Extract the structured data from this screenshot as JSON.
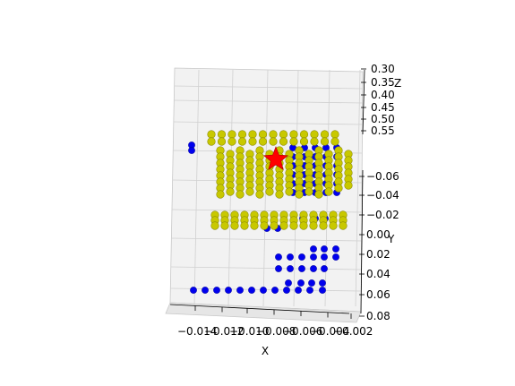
{
  "chart_data": {
    "type": "scatter",
    "title": "",
    "xlabel": "X",
    "ylabel": "Y",
    "zlabel": "Z",
    "x_ticks": [
      "−0.014",
      "−0.012",
      "−0.010",
      "−0.008",
      "−0.006",
      "−0.004",
      "−0.002"
    ],
    "y_ticks": [
      "−0.06",
      "−0.04",
      "−0.02",
      "0.00",
      "0.02",
      "0.04",
      "0.06",
      "0.08"
    ],
    "z_ticks": [
      "0.30",
      "0.35",
      "0.40",
      "0.45",
      "0.50",
      "0.55"
    ],
    "xlim": [
      -0.0145,
      -0.0015
    ],
    "ylim": [
      -0.07,
      0.08
    ],
    "zlim": [
      0.3,
      0.55
    ],
    "grid": true,
    "colors": {
      "blue_points": "#0000ee",
      "yellow_points": "#c8c800",
      "yellow_edge": "#8c8c00",
      "star": "#ff0000",
      "pane": "#f2f2f2",
      "grid": "#d0d0d0"
    },
    "series": [
      {
        "marker": "circle",
        "color": "blue"
      },
      {
        "marker": "circle",
        "color": "yellow"
      },
      {
        "marker": "star",
        "color": "red"
      }
    ]
  }
}
